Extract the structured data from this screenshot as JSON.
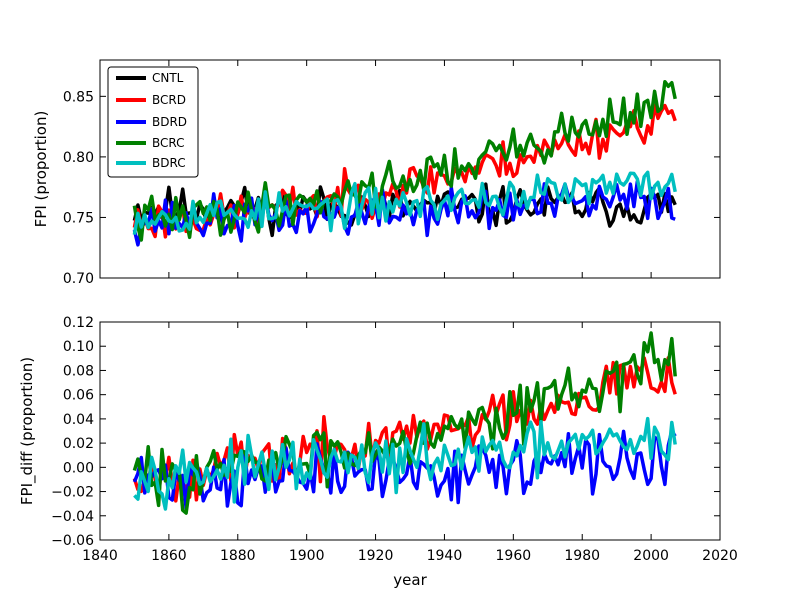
{
  "figure": {
    "xlabel": "year"
  },
  "chart_data": [
    {
      "type": "line",
      "ylabel": "FPI (proportion)",
      "xlim": [
        1840,
        2020
      ],
      "ylim": [
        0.7,
        0.88
      ],
      "xticks": [
        1840,
        1860,
        1880,
        1900,
        1920,
        1940,
        1960,
        1980,
        2000,
        2020
      ],
      "xtick_labels_shown": false,
      "yticks": [
        0.7,
        0.75,
        0.8,
        0.85
      ],
      "ytick_labels": [
        "0.70",
        "0.75",
        "0.80",
        "0.85"
      ],
      "legend": {
        "placement": "top-left",
        "entries": [
          "CNTL",
          "BCRD",
          "BDRD",
          "BCRC",
          "BDRC"
        ]
      },
      "x_start": 1850,
      "x_end": 2007,
      "series": [
        {
          "name": "CNTL",
          "color": "#000000",
          "base": 0.758,
          "trend": 0.002,
          "noise": 0.012,
          "seed": 11
        },
        {
          "name": "BCRD",
          "color": "#ff0000",
          "base": 0.747,
          "trend": 0.09,
          "noise": 0.012,
          "seed": 23
        },
        {
          "name": "BDRD",
          "color": "#0000ff",
          "base": 0.748,
          "trend": 0.018,
          "noise": 0.013,
          "seed": 37
        },
        {
          "name": "BCRC",
          "color": "#008000",
          "base": 0.748,
          "trend": 0.102,
          "noise": 0.013,
          "seed": 41
        },
        {
          "name": "BDRC",
          "color": "#00bfbf",
          "base": 0.752,
          "trend": 0.028,
          "noise": 0.011,
          "seed": 53
        }
      ]
    },
    {
      "type": "line",
      "ylabel": "FPI_diff (proportion)",
      "xlabel": "year",
      "xlim": [
        1840,
        2020
      ],
      "ylim": [
        -0.06,
        0.12
      ],
      "xticks": [
        1840,
        1860,
        1880,
        1900,
        1920,
        1940,
        1960,
        1980,
        2000,
        2020
      ],
      "xtick_labels": [
        "1840",
        "1860",
        "1880",
        "1900",
        "1920",
        "1940",
        "1960",
        "1980",
        "2000",
        "2020"
      ],
      "yticks": [
        -0.06,
        -0.04,
        -0.02,
        0.0,
        0.02,
        0.04,
        0.06,
        0.08,
        0.1,
        0.12
      ],
      "ytick_labels": [
        "−0.06",
        "−0.04",
        "−0.02",
        "0.00",
        "0.02",
        "0.04",
        "0.06",
        "0.08",
        "0.10",
        "0.12"
      ],
      "x_start": 1850,
      "x_end": 2007,
      "series": [
        {
          "name": "BCRD",
          "color": "#ff0000",
          "base": -0.005,
          "trend": 0.09,
          "noise": 0.016,
          "seed": 67
        },
        {
          "name": "BDRD",
          "color": "#0000ff",
          "base": -0.01,
          "trend": 0.018,
          "noise": 0.017,
          "seed": 71
        },
        {
          "name": "BCRC",
          "color": "#008000",
          "base": -0.008,
          "trend": 0.1,
          "noise": 0.017,
          "seed": 83
        },
        {
          "name": "BDRC",
          "color": "#00bfbf",
          "base": -0.004,
          "trend": 0.028,
          "noise": 0.015,
          "seed": 97
        }
      ]
    }
  ]
}
